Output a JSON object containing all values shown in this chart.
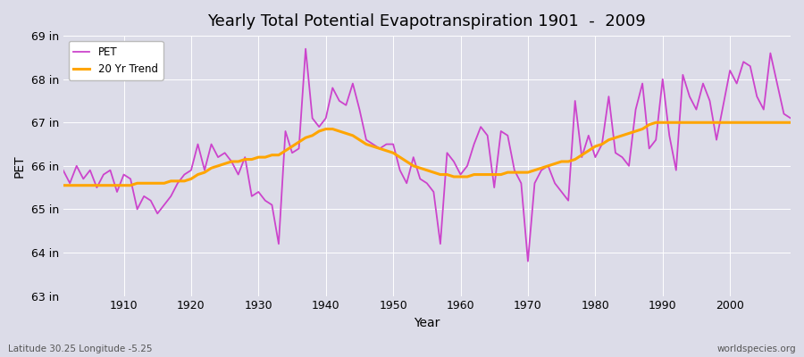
{
  "title": "Yearly Total Potential Evapotranspiration 1901  -  2009",
  "xlabel": "Year",
  "ylabel": "PET",
  "subtitle_left": "Latitude 30.25 Longitude -5.25",
  "subtitle_right": "worldspecies.org",
  "pet_color": "#CC44CC",
  "trend_color": "#FFA500",
  "bg_color": "#DCDCE8",
  "plot_bg_color": "#DCDCE8",
  "ylim": [
    63,
    69
  ],
  "years": [
    1901,
    1902,
    1903,
    1904,
    1905,
    1906,
    1907,
    1908,
    1909,
    1910,
    1911,
    1912,
    1913,
    1914,
    1915,
    1916,
    1917,
    1918,
    1919,
    1920,
    1921,
    1922,
    1923,
    1924,
    1925,
    1926,
    1927,
    1928,
    1929,
    1930,
    1931,
    1932,
    1933,
    1934,
    1935,
    1936,
    1937,
    1938,
    1939,
    1940,
    1941,
    1942,
    1943,
    1944,
    1945,
    1946,
    1947,
    1948,
    1949,
    1950,
    1951,
    1952,
    1953,
    1954,
    1955,
    1956,
    1957,
    1958,
    1959,
    1960,
    1961,
    1962,
    1963,
    1964,
    1965,
    1966,
    1967,
    1968,
    1969,
    1970,
    1971,
    1972,
    1973,
    1974,
    1975,
    1976,
    1977,
    1978,
    1979,
    1980,
    1981,
    1982,
    1983,
    1984,
    1985,
    1986,
    1987,
    1988,
    1989,
    1990,
    1991,
    1992,
    1993,
    1994,
    1995,
    1996,
    1997,
    1998,
    1999,
    2000,
    2001,
    2002,
    2003,
    2004,
    2005,
    2006,
    2007,
    2008,
    2009
  ],
  "pet": [
    65.9,
    65.6,
    66.0,
    65.7,
    65.9,
    65.5,
    65.8,
    65.9,
    65.4,
    65.8,
    65.7,
    65.0,
    65.3,
    65.2,
    64.9,
    65.1,
    65.3,
    65.6,
    65.8,
    65.9,
    66.5,
    65.9,
    66.5,
    66.2,
    66.3,
    66.1,
    65.8,
    66.2,
    65.3,
    65.4,
    65.2,
    65.1,
    64.2,
    66.8,
    66.3,
    66.4,
    68.7,
    67.1,
    66.9,
    67.1,
    67.8,
    67.5,
    67.4,
    67.9,
    67.3,
    66.6,
    66.5,
    66.4,
    66.5,
    66.5,
    65.9,
    65.6,
    66.2,
    65.7,
    65.6,
    65.4,
    64.2,
    66.3,
    66.1,
    65.8,
    66.0,
    66.5,
    66.9,
    66.7,
    65.5,
    66.8,
    66.7,
    65.9,
    65.6,
    63.8,
    65.6,
    65.9,
    66.0,
    65.6,
    65.4,
    65.2,
    67.5,
    66.2,
    66.7,
    66.2,
    66.5,
    67.6,
    66.3,
    66.2,
    66.0,
    67.3,
    67.9,
    66.4,
    66.6,
    68.0,
    66.7,
    65.9,
    68.1,
    67.6,
    67.3,
    67.9,
    67.5,
    66.6,
    67.4,
    68.2,
    67.9,
    68.4,
    68.3,
    67.6,
    67.3,
    68.6,
    67.9,
    67.2,
    67.1
  ],
  "trend": [
    65.55,
    65.55,
    65.55,
    65.55,
    65.55,
    65.55,
    65.55,
    65.55,
    65.55,
    65.55,
    65.55,
    65.6,
    65.6,
    65.6,
    65.6,
    65.6,
    65.65,
    65.65,
    65.65,
    65.7,
    65.8,
    65.85,
    65.95,
    66.0,
    66.05,
    66.1,
    66.1,
    66.15,
    66.15,
    66.2,
    66.2,
    66.25,
    66.25,
    66.35,
    66.45,
    66.55,
    66.65,
    66.7,
    66.8,
    66.85,
    66.85,
    66.8,
    66.75,
    66.7,
    66.6,
    66.5,
    66.45,
    66.4,
    66.35,
    66.3,
    66.2,
    66.1,
    66.0,
    65.95,
    65.9,
    65.85,
    65.8,
    65.8,
    65.75,
    65.75,
    65.75,
    65.8,
    65.8,
    65.8,
    65.8,
    65.8,
    65.85,
    65.85,
    65.85,
    65.85,
    65.9,
    65.95,
    66.0,
    66.05,
    66.1,
    66.1,
    66.15,
    66.25,
    66.35,
    66.45,
    66.5,
    66.6,
    66.65,
    66.7,
    66.75,
    66.8,
    66.85,
    66.95,
    67.0,
    67.0,
    67.0,
    67.0,
    67.0,
    67.0,
    67.0,
    67.0,
    67.0,
    67.0,
    67.0,
    67.0,
    67.0,
    67.0,
    67.0,
    67.0,
    67.0,
    67.0,
    67.0,
    67.0,
    67.0
  ]
}
